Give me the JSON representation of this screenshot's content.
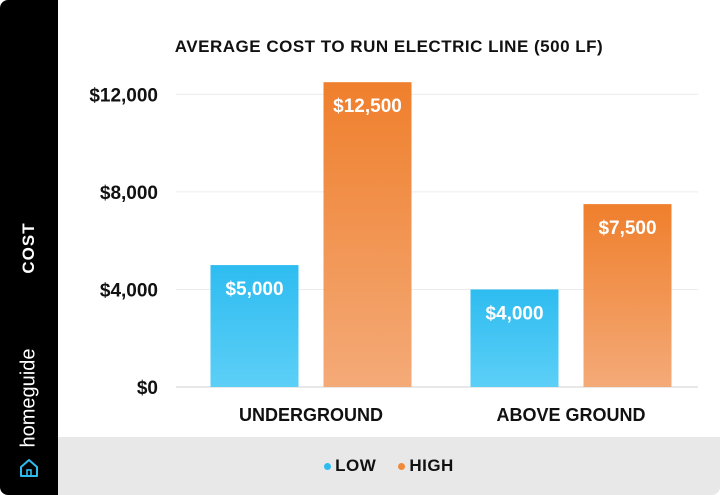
{
  "brand": {
    "name": "homeguide",
    "icon": "house-icon"
  },
  "legend": [
    {
      "label": "LOW",
      "color": "#2ebcf0"
    },
    {
      "label": "HIGH",
      "color": "#f08a3a"
    }
  ],
  "chart_data": {
    "type": "bar",
    "title": "AVERAGE COST TO RUN ELECTRIC LINE (500 LF)",
    "ylabel": "COST",
    "xlabel": "",
    "categories": [
      "UNDERGROUND",
      "ABOVE GROUND"
    ],
    "series": [
      {
        "name": "LOW",
        "values": [
          5000,
          4000
        ],
        "labels": [
          "$5,000",
          "$4,000"
        ],
        "color_top": "#2ebcf0",
        "color_bottom": "#5ccff7"
      },
      {
        "name": "HIGH",
        "values": [
          12500,
          7500
        ],
        "labels": [
          "$12,500",
          "$7,500"
        ],
        "color_top": "#ef7f2c",
        "color_bottom": "#f4aa78"
      }
    ],
    "yticks": [
      0,
      4000,
      8000,
      12000
    ],
    "ytick_labels": [
      "$0",
      "$4,000",
      "$8,000",
      "$12,000"
    ],
    "ylim": [
      0,
      13000
    ],
    "grid": true,
    "legend_position": "bottom"
  }
}
